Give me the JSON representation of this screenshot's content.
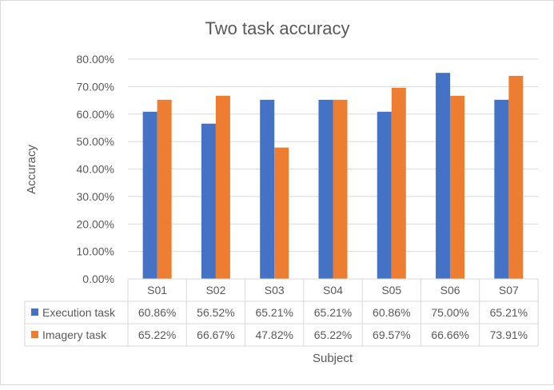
{
  "chart_data": {
    "type": "bar",
    "title": "Two task accuracy",
    "xlabel": "Subject",
    "ylabel": "Accuracy",
    "categories": [
      "S01",
      "S02",
      "S03",
      "S04",
      "S05",
      "S06",
      "S07"
    ],
    "series": [
      {
        "name": "Execution task",
        "color": "#4472c4",
        "values": [
          60.86,
          56.52,
          65.21,
          65.21,
          60.86,
          75.0,
          65.21
        ],
        "labels": [
          "60.86%",
          "56.52%",
          "65.21%",
          "65.21%",
          "60.86%",
          "75.00%",
          "65.21%"
        ]
      },
      {
        "name": "Imagery task",
        "color": "#ed7d31",
        "values": [
          65.22,
          66.67,
          47.82,
          65.22,
          69.57,
          66.66,
          73.91
        ],
        "labels": [
          "65.22%",
          "66.67%",
          "47.82%",
          "65.22%",
          "69.57%",
          "66.66%",
          "73.91%"
        ]
      }
    ],
    "ylim": [
      0,
      80
    ],
    "yticks": [
      {
        "value": 0,
        "label": "0.00%"
      },
      {
        "value": 10,
        "label": "10.00%"
      },
      {
        "value": 20,
        "label": "20.00%"
      },
      {
        "value": 30,
        "label": "30.00%"
      },
      {
        "value": 40,
        "label": "40.00%"
      },
      {
        "value": 50,
        "label": "50.00%"
      },
      {
        "value": 60,
        "label": "60.00%"
      },
      {
        "value": 70,
        "label": "70.00%"
      },
      {
        "value": 80,
        "label": "80.00%"
      }
    ],
    "grid": true,
    "legend": "data table"
  }
}
